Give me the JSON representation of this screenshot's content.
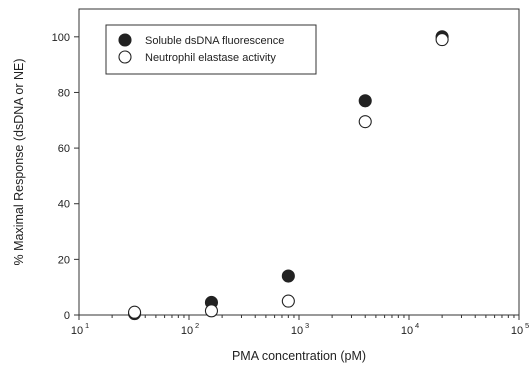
{
  "chart_data": {
    "type": "scatter",
    "title": "",
    "xlabel": "PMA concentration (pM)",
    "ylabel": "% Maximal Response (dsDNA or NE)",
    "xscale": "log",
    "xlim": [
      10,
      100000
    ],
    "ylim": [
      0,
      110
    ],
    "x_ticks": [
      {
        "base": "10",
        "exp": "1",
        "value": 10
      },
      {
        "base": "10",
        "exp": "2",
        "value": 100
      },
      {
        "base": "10",
        "exp": "3",
        "value": 1000
      },
      {
        "base": "10",
        "exp": "4",
        "value": 10000
      },
      {
        "base": "10",
        "exp": "5",
        "value": 100000
      }
    ],
    "y_ticks": [
      0,
      20,
      40,
      60,
      80,
      100
    ],
    "grid": false,
    "legend_position": "top-left",
    "series": [
      {
        "name": "Soluble dsDNA fluorescence",
        "marker": "filled-circle",
        "color": "#222222",
        "x": [
          32,
          160,
          800,
          4000,
          20000
        ],
        "y": [
          0.5,
          4.5,
          14,
          77,
          100
        ]
      },
      {
        "name": "Neutrophil elastase activity",
        "marker": "open-circle",
        "color": "#222222",
        "x": [
          32,
          160,
          800,
          4000,
          20000
        ],
        "y": [
          1,
          1.5,
          5,
          69.5,
          99
        ]
      }
    ]
  }
}
